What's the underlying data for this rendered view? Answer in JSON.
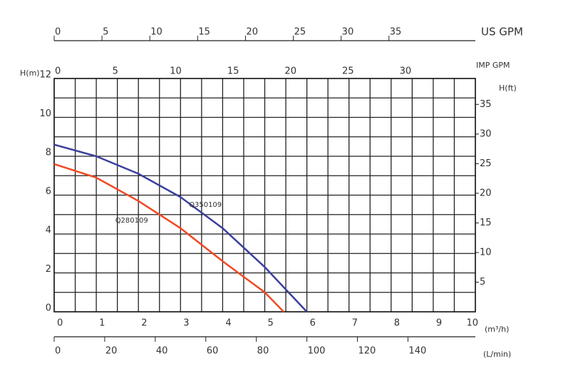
{
  "chart_data": {
    "type": "line",
    "ylabel": "H(m)",
    "xlabel": "(m³/h)",
    "xlim": [
      0,
      10
    ],
    "xticks": [
      0,
      1,
      2,
      3,
      4,
      5,
      6,
      7,
      8,
      9,
      10
    ],
    "ylim": [
      0,
      12
    ],
    "yticks": [
      0,
      2,
      4,
      6,
      8,
      10,
      12
    ],
    "y2label": "H(ft)",
    "y2lim": [
      0,
      39.37
    ],
    "y2ticks": [
      5,
      10,
      15,
      20,
      25,
      30,
      35
    ],
    "grid": true,
    "secondary_x_axes": [
      {
        "label": "US GPM",
        "xlim": [
          0,
          44.03
        ],
        "xticks": [
          0,
          5,
          10,
          15,
          20,
          25,
          30,
          35
        ]
      },
      {
        "label": "IMP GPM",
        "xlim": [
          0,
          36.66
        ],
        "xticks": [
          0,
          5,
          10,
          15,
          20,
          25,
          30
        ]
      },
      {
        "label": "(L/min)",
        "xlim": [
          0,
          166.67
        ],
        "xticks": [
          0,
          20,
          40,
          60,
          80,
          100,
          120,
          140
        ]
      }
    ],
    "series": [
      {
        "name": "Q350109",
        "color": "#3b3f9c",
        "x": [
          0,
          1,
          2,
          3,
          4,
          5,
          6
        ],
        "values": [
          8.6,
          8.0,
          7.1,
          5.9,
          4.3,
          2.3,
          0
        ]
      },
      {
        "name": "Q280109",
        "color": "#f04a23",
        "x": [
          0,
          1,
          2,
          3,
          4,
          5,
          5.45
        ],
        "values": [
          7.6,
          6.9,
          5.7,
          4.3,
          2.6,
          1.0,
          0
        ]
      }
    ]
  }
}
